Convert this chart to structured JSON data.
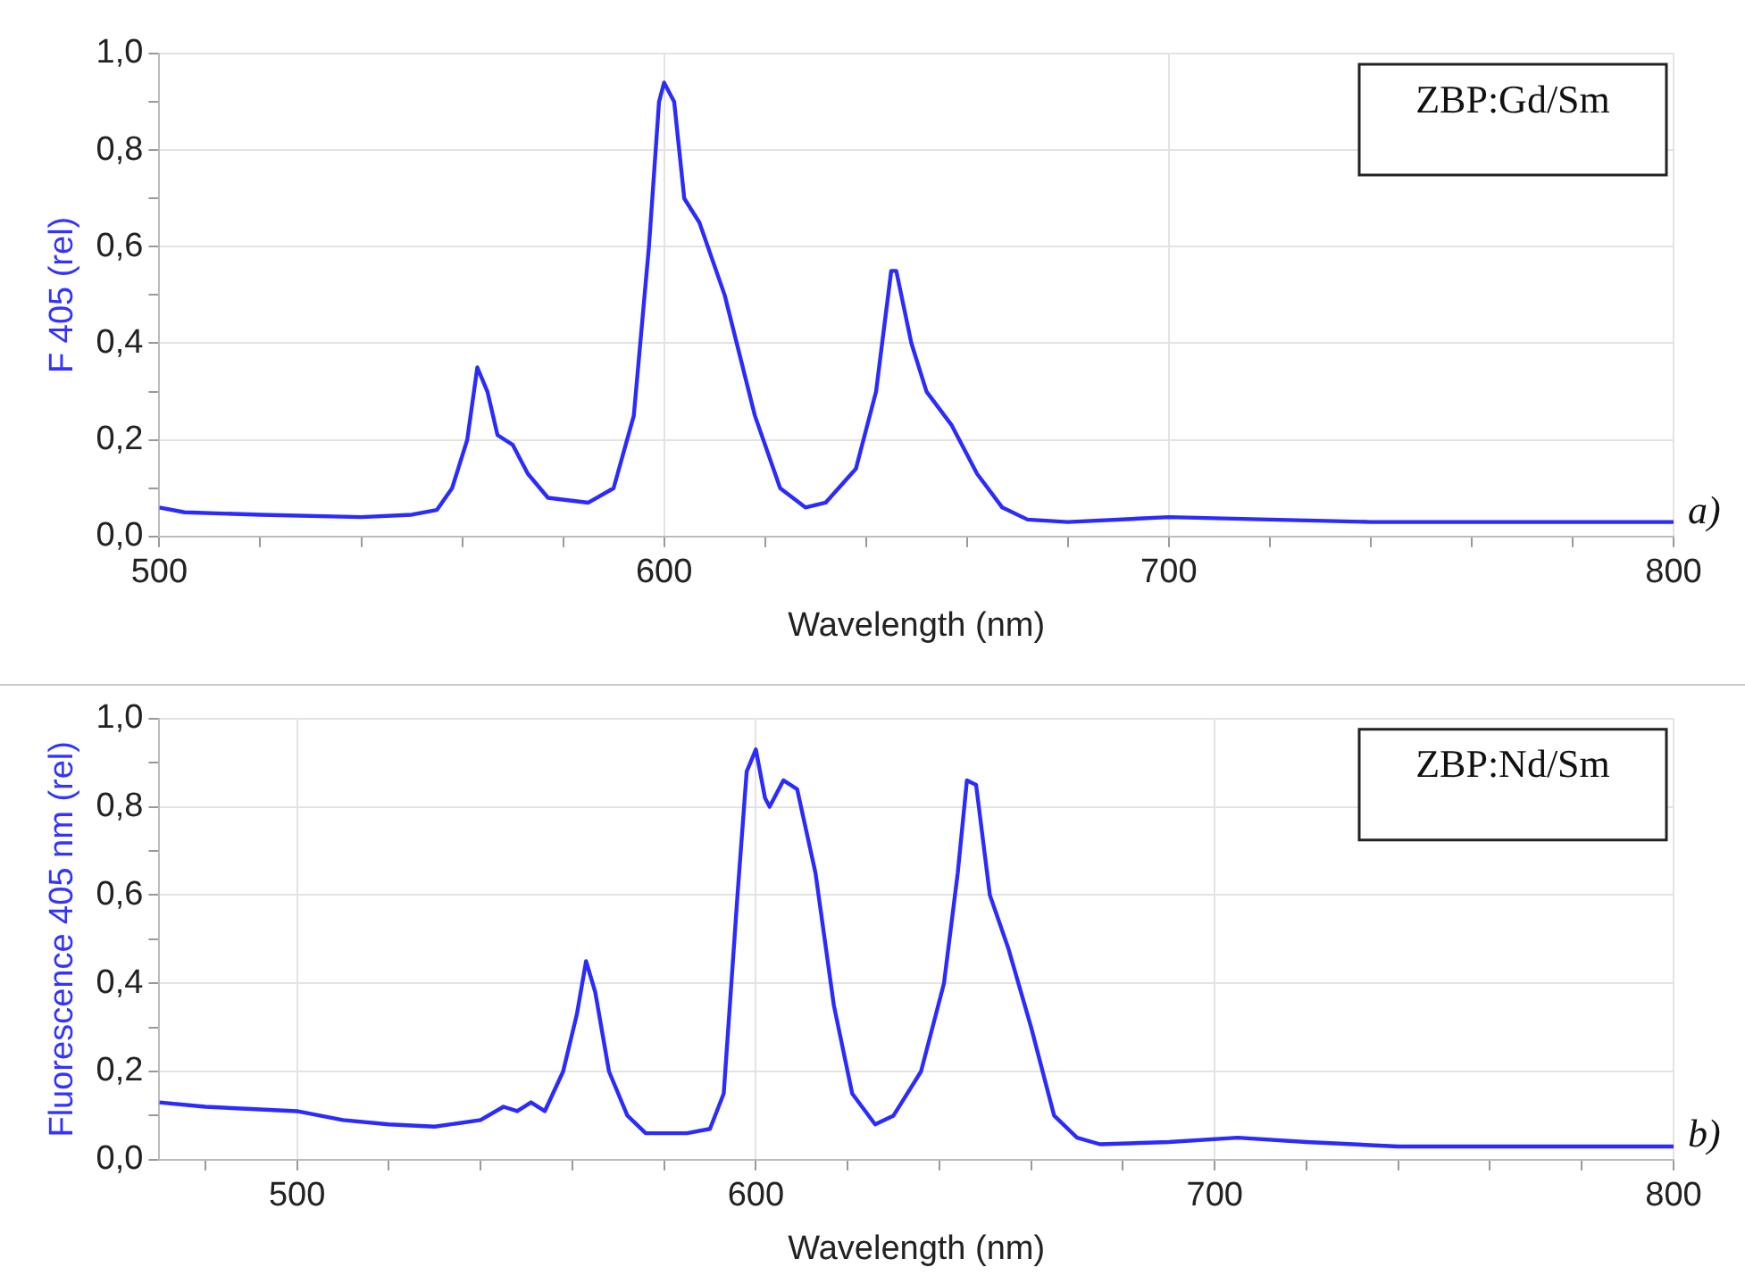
{
  "chart_data": [
    {
      "type": "line",
      "xlabel": "Wavelength (nm)",
      "ylabel": "F 405 (rel)",
      "annotations": [
        "ZBP:Gd/Sm",
        "a)"
      ],
      "x": [
        500,
        505,
        520,
        540,
        550,
        555,
        558,
        561,
        563,
        565,
        567,
        570,
        573,
        577,
        585,
        590,
        594,
        597,
        599,
        600,
        602,
        604,
        607,
        612,
        618,
        623,
        628,
        632,
        638,
        642,
        645,
        646,
        649,
        652,
        657,
        662,
        667,
        672,
        680,
        700,
        720,
        740,
        760,
        780,
        800
      ],
      "series": [
        {
          "color": "#2b2bff",
          "values": [
            0.06,
            0.05,
            0.045,
            0.04,
            0.045,
            0.055,
            0.1,
            0.2,
            0.35,
            0.3,
            0.21,
            0.19,
            0.13,
            0.08,
            0.07,
            0.1,
            0.25,
            0.6,
            0.9,
            0.94,
            0.9,
            0.7,
            0.65,
            0.5,
            0.25,
            0.1,
            0.06,
            0.07,
            0.14,
            0.3,
            0.55,
            0.55,
            0.4,
            0.3,
            0.23,
            0.13,
            0.06,
            0.035,
            0.03,
            0.04,
            0.035,
            0.03,
            0.03,
            0.03,
            0.03
          ]
        }
      ],
      "xlim": [
        500,
        800
      ],
      "xticks": [
        500,
        {
          "value": 520,
          "label": null
        },
        {
          "value": 540,
          "label": null
        },
        {
          "value": 560,
          "label": null
        },
        {
          "value": 580,
          "label": null
        },
        600,
        {
          "value": 620,
          "label": null
        },
        {
          "value": 640,
          "label": null
        },
        {
          "value": 660,
          "label": null
        },
        {
          "value": 680,
          "label": null
        },
        700,
        {
          "value": 720,
          "label": null
        },
        {
          "value": 740,
          "label": null
        },
        {
          "value": 760,
          "label": null
        },
        {
          "value": 780,
          "label": null
        },
        800
      ],
      "ylim": [
        0,
        1
      ],
      "yticks": [
        {
          "value": 0,
          "label": "0,0"
        },
        {
          "value": 0.1,
          "label": null
        },
        {
          "value": 0.2,
          "label": "0,2"
        },
        {
          "value": 0.3,
          "label": null
        },
        {
          "value": 0.4,
          "label": "0,4"
        },
        {
          "value": 0.5,
          "label": null
        },
        {
          "value": 0.6,
          "label": "0,6"
        },
        {
          "value": 0.7,
          "label": null
        },
        {
          "value": 0.8,
          "label": "0,8"
        },
        {
          "value": 0.9,
          "label": null
        },
        {
          "value": 1,
          "label": "1,0"
        }
      ],
      "grid": true,
      "legend": false,
      "marker": "none",
      "line_style": "solid"
    },
    {
      "type": "line",
      "xlabel": "Wavelength (nm)",
      "ylabel": "Fluorescence 405 nm (rel)",
      "annotations": [
        "ZBP:Nd/Sm",
        "b)"
      ],
      "x": [
        470,
        480,
        490,
        500,
        510,
        520,
        530,
        540,
        545,
        548,
        551,
        554,
        558,
        561,
        563,
        565,
        568,
        572,
        576,
        585,
        590,
        593,
        596,
        598,
        600,
        602,
        603,
        606,
        609,
        613,
        617,
        621,
        626,
        630,
        636,
        641,
        644,
        646,
        648,
        651,
        655,
        660,
        665,
        670,
        675,
        690,
        705,
        720,
        740,
        760,
        780,
        800
      ],
      "series": [
        {
          "color": "#2b2bff",
          "values": [
            0.13,
            0.12,
            0.115,
            0.11,
            0.09,
            0.08,
            0.075,
            0.09,
            0.12,
            0.11,
            0.13,
            0.11,
            0.2,
            0.33,
            0.45,
            0.38,
            0.2,
            0.1,
            0.06,
            0.06,
            0.07,
            0.15,
            0.6,
            0.88,
            0.93,
            0.82,
            0.8,
            0.86,
            0.84,
            0.65,
            0.35,
            0.15,
            0.08,
            0.1,
            0.2,
            0.4,
            0.65,
            0.86,
            0.85,
            0.6,
            0.48,
            0.3,
            0.1,
            0.05,
            0.035,
            0.04,
            0.05,
            0.04,
            0.03,
            0.03,
            0.03,
            0.03
          ]
        }
      ],
      "xlim": [
        470,
        800
      ],
      "xticks": [
        {
          "value": 480,
          "label": null
        },
        500,
        {
          "value": 520,
          "label": null
        },
        {
          "value": 540,
          "label": null
        },
        {
          "value": 560,
          "label": null
        },
        {
          "value": 580,
          "label": null
        },
        600,
        {
          "value": 620,
          "label": null
        },
        {
          "value": 640,
          "label": null
        },
        {
          "value": 660,
          "label": null
        },
        {
          "value": 680,
          "label": null
        },
        700,
        {
          "value": 720,
          "label": null
        },
        {
          "value": 740,
          "label": null
        },
        {
          "value": 760,
          "label": null
        },
        {
          "value": 780,
          "label": null
        },
        800
      ],
      "ylim": [
        0,
        1
      ],
      "yticks": [
        {
          "value": 0,
          "label": "0,0"
        },
        {
          "value": 0.1,
          "label": null
        },
        {
          "value": 0.2,
          "label": "0,2"
        },
        {
          "value": 0.3,
          "label": null
        },
        {
          "value": 0.4,
          "label": "0,4"
        },
        {
          "value": 0.5,
          "label": null
        },
        {
          "value": 0.6,
          "label": "0,6"
        },
        {
          "value": 0.7,
          "label": null
        },
        {
          "value": 0.8,
          "label": "0,8"
        },
        {
          "value": 0.9,
          "label": null
        },
        {
          "value": 1,
          "label": "1,0"
        }
      ],
      "grid": true,
      "legend": false,
      "marker": "none",
      "line_style": "solid"
    }
  ]
}
